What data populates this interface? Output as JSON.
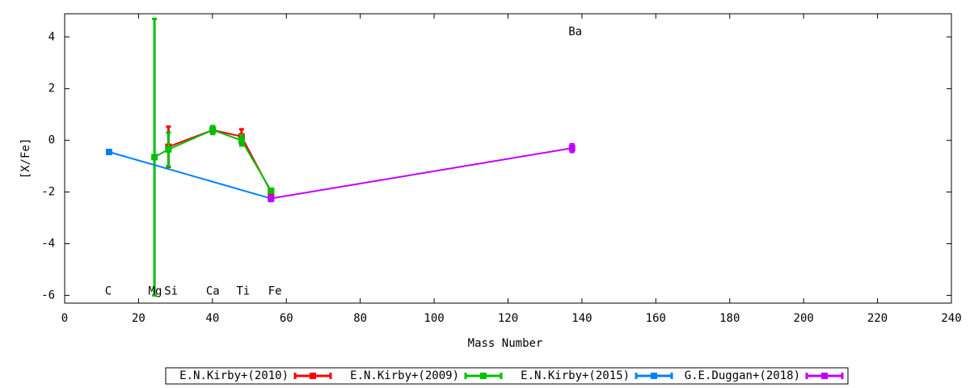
{
  "chart_data": {
    "type": "errorline",
    "xlabel": "Mass Number",
    "ylabel": "[X/Fe]",
    "xlim": [
      0,
      240
    ],
    "ylim": [
      -6.3,
      4.9
    ],
    "xticks": [
      0,
      20,
      40,
      60,
      80,
      100,
      120,
      140,
      160,
      180,
      200,
      220,
      240
    ],
    "yticks": [
      -6,
      -4,
      -2,
      0,
      2,
      4
    ],
    "series": [
      {
        "name": "E.N.Kirby+(2010)",
        "color": "#ff0000",
        "x": [
          28.09,
          40.08,
          47.87,
          55.85
        ],
        "values": [
          -0.25,
          0.4,
          0.15,
          -2.0
        ],
        "errors": [
          0.78,
          0.15,
          0.28,
          0.05
        ]
      },
      {
        "name": "E.N.Kirby+(2009)",
        "color": "#00c000",
        "x": [
          24.31,
          28.09,
          40.08,
          47.87,
          55.85
        ],
        "values": [
          -0.65,
          -0.35,
          0.4,
          0.0,
          -1.95
        ],
        "errors": [
          5.35,
          0.65,
          0.15,
          0.2,
          0.05
        ]
      },
      {
        "name": "E.N.Kirby+(2015)",
        "color": "#0080ff",
        "x": [
          12.01,
          55.85
        ],
        "values": [
          -0.45,
          -2.25
        ],
        "errors": [
          0.05,
          0.05
        ]
      },
      {
        "name": "G.E.Duggan+(2018)",
        "color": "#c000ff",
        "x": [
          55.85,
          137.33
        ],
        "values": [
          -2.25,
          -0.3
        ],
        "errors": [
          0.1,
          0.15
        ]
      }
    ],
    "annotations": [
      {
        "text": "C",
        "x": 11.8,
        "y": -5.85
      },
      {
        "text": "Mg",
        "x": 24.5,
        "y": -5.85
      },
      {
        "text": "Si",
        "x": 28.8,
        "y": -5.85
      },
      {
        "text": "Ca",
        "x": 40.1,
        "y": -5.85
      },
      {
        "text": "Ti",
        "x": 48.3,
        "y": -5.85
      },
      {
        "text": "Fe",
        "x": 56.9,
        "y": -5.85
      },
      {
        "text": "Ba",
        "x": 138.2,
        "y": 4.2
      }
    ]
  }
}
